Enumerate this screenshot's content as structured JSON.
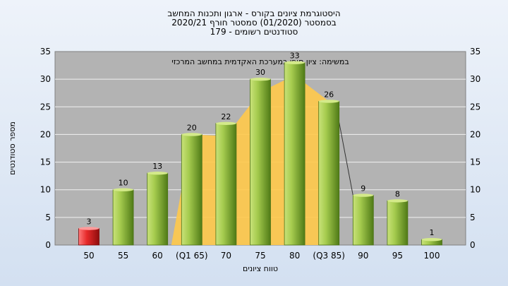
{
  "titles": {
    "line1": "היסטוגרמת ציונים בקורס - ארגון ותכנות המחשב",
    "line2": "בסמסטר  (01/2020)  סמסטר חורף 2020/21",
    "line3": "סטודנטים רשומים - 179"
  },
  "chart_data": {
    "type": "bar",
    "title": "היסטוגרמת ציונים בקורס - ארגון ותכנות המחשב",
    "annotation": "במשימה: ציון סופי במערכת האקדמית במחשב המרכזי",
    "xlabel": "טווח ציונים",
    "ylabel": "מספר סטודנטים",
    "ylim": [
      0,
      35
    ],
    "yticks": [
      0,
      5,
      10,
      15,
      20,
      25,
      30,
      35
    ],
    "categories": [
      "50",
      "55",
      "60",
      "(Q1 65)",
      "70",
      "75",
      "80",
      "(Q3 85)",
      "90",
      "95",
      "100"
    ],
    "values": [
      3,
      10,
      13,
      20,
      22,
      30,
      33,
      26,
      9,
      8,
      1
    ],
    "grid": true,
    "colors": {
      "plot_bg": "#b3b3b3",
      "bar_green": "#8fbb3a",
      "bar_red": "#d62020",
      "band": "#ffc94a"
    }
  }
}
